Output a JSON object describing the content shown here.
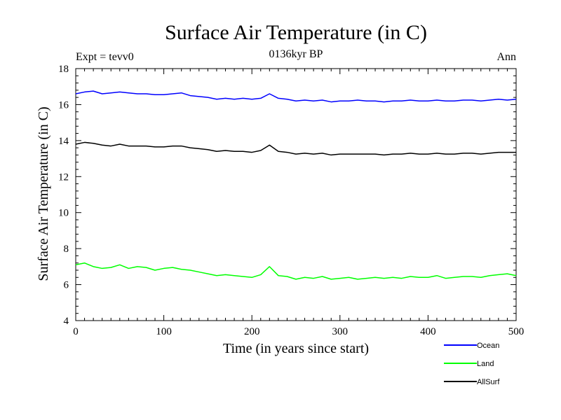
{
  "chart_data": {
    "type": "line",
    "title": "Surface Air Temperature (in C)",
    "subtitle": "0136kyr BP",
    "left_label": "Expt = tevv0",
    "right_label": "Ann",
    "xlabel": "Time (in years since start)",
    "ylabel": "Surface Air Temperature (in C)",
    "xlim": [
      0,
      500
    ],
    "ylim": [
      4,
      18
    ],
    "xticks": [
      0,
      100,
      200,
      300,
      400,
      500
    ],
    "yticks": [
      4,
      6,
      8,
      10,
      12,
      14,
      16,
      18
    ],
    "grid": false,
    "legend_position": "bottom-right",
    "x": [
      0,
      10,
      20,
      30,
      40,
      50,
      60,
      70,
      80,
      90,
      100,
      110,
      120,
      130,
      140,
      150,
      160,
      170,
      180,
      190,
      200,
      210,
      220,
      230,
      240,
      250,
      260,
      270,
      280,
      290,
      300,
      310,
      320,
      330,
      340,
      350,
      360,
      370,
      380,
      390,
      400,
      410,
      420,
      430,
      440,
      450,
      460,
      470,
      480,
      490,
      500
    ],
    "series": [
      {
        "name": "Ocean",
        "color": "#0000ff",
        "values": [
          16.6,
          16.7,
          16.75,
          16.6,
          16.65,
          16.7,
          16.65,
          16.6,
          16.6,
          16.55,
          16.55,
          16.6,
          16.65,
          16.5,
          16.45,
          16.4,
          16.3,
          16.35,
          16.3,
          16.35,
          16.3,
          16.35,
          16.6,
          16.35,
          16.3,
          16.2,
          16.25,
          16.2,
          16.25,
          16.15,
          16.2,
          16.2,
          16.25,
          16.2,
          16.2,
          16.15,
          16.2,
          16.2,
          16.25,
          16.2,
          16.2,
          16.25,
          16.2,
          16.2,
          16.25,
          16.25,
          16.2,
          16.25,
          16.3,
          16.25,
          16.3
        ]
      },
      {
        "name": "Land",
        "color": "#00ff00",
        "values": [
          7.1,
          7.2,
          7.0,
          6.9,
          6.95,
          7.1,
          6.9,
          7.0,
          6.95,
          6.8,
          6.9,
          6.95,
          6.85,
          6.8,
          6.7,
          6.6,
          6.5,
          6.55,
          6.5,
          6.45,
          6.4,
          6.55,
          7.0,
          6.5,
          6.45,
          6.3,
          6.4,
          6.35,
          6.45,
          6.3,
          6.35,
          6.4,
          6.3,
          6.35,
          6.4,
          6.35,
          6.4,
          6.35,
          6.45,
          6.4,
          6.4,
          6.5,
          6.35,
          6.4,
          6.45,
          6.45,
          6.4,
          6.5,
          6.55,
          6.6,
          6.5
        ]
      },
      {
        "name": "AllSurf",
        "color": "#000000",
        "values": [
          13.8,
          13.9,
          13.85,
          13.75,
          13.7,
          13.8,
          13.7,
          13.7,
          13.7,
          13.65,
          13.65,
          13.7,
          13.7,
          13.6,
          13.55,
          13.5,
          13.4,
          13.45,
          13.4,
          13.4,
          13.35,
          13.45,
          13.75,
          13.4,
          13.35,
          13.25,
          13.3,
          13.25,
          13.3,
          13.2,
          13.25,
          13.25,
          13.25,
          13.25,
          13.25,
          13.2,
          13.25,
          13.25,
          13.3,
          13.25,
          13.25,
          13.3,
          13.25,
          13.25,
          13.3,
          13.3,
          13.25,
          13.3,
          13.35,
          13.35,
          13.35
        ]
      }
    ]
  }
}
